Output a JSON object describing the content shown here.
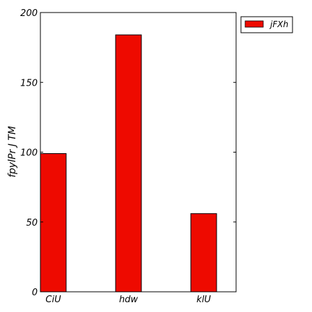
{
  "chart_data": {
    "type": "bar",
    "title": "",
    "xlabel": "",
    "ylabel": "fpylPr  J TM",
    "categories": [
      "CiU",
      "hdw",
      "klU"
    ],
    "series": [
      {
        "name": "jFXh",
        "values": [
          99,
          184,
          56
        ],
        "color": "#ee0a00"
      }
    ],
    "ylim": [
      0,
      200
    ],
    "yticks": [
      0,
      50,
      100,
      150,
      200
    ],
    "ytick_labels": [
      "0",
      "50",
      "100",
      "150",
      "200"
    ],
    "grid": false,
    "legend_position": "outside-top-right"
  }
}
